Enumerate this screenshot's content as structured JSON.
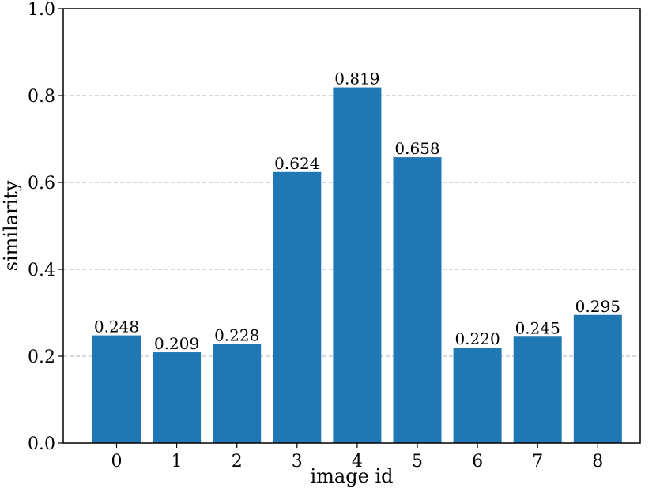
{
  "chart_data": {
    "type": "bar",
    "title": "",
    "xlabel": "image id",
    "ylabel": "similarity",
    "categories": [
      "0",
      "1",
      "2",
      "3",
      "4",
      "5",
      "6",
      "7",
      "8"
    ],
    "values": [
      0.248,
      0.209,
      0.228,
      0.624,
      0.819,
      0.658,
      0.22,
      0.245,
      0.295
    ],
    "data_labels": [
      "0.248",
      "0.209",
      "0.228",
      "0.624",
      "0.819",
      "0.658",
      "0.220",
      "0.245",
      "0.295"
    ],
    "ylim": [
      0.0,
      1.0
    ],
    "yticks": [
      0.0,
      0.2,
      0.4,
      0.6,
      0.8,
      1.0
    ],
    "ytick_labels": [
      "0.0",
      "0.2",
      "0.4",
      "0.6",
      "0.8",
      "1.0"
    ],
    "grid": "horizontal dashed",
    "legend": "none",
    "colors": {
      "bar": "#1f77b4",
      "grid": "#b0b0b0",
      "axis": "#000000"
    }
  }
}
